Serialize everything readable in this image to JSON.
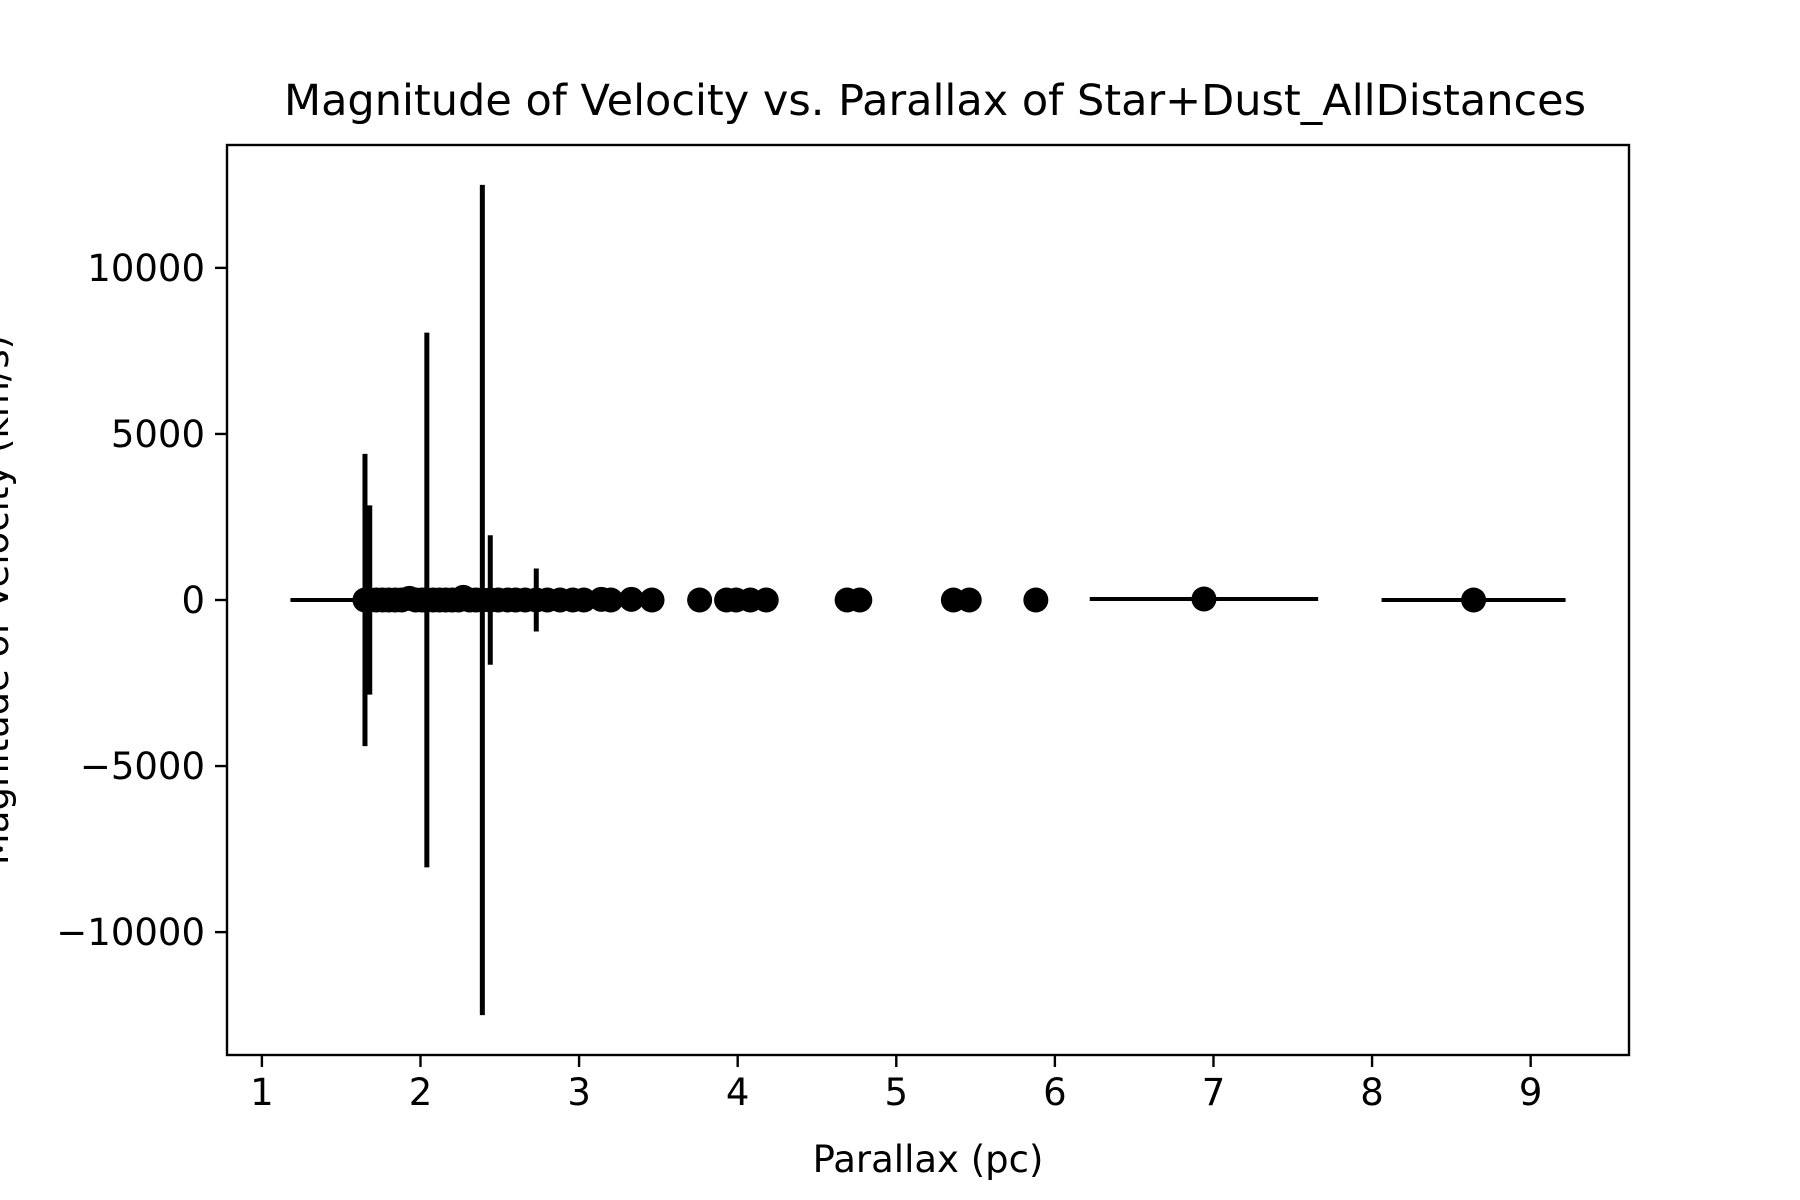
{
  "chart_data": {
    "type": "scatter",
    "title": "Magnitude of Velocity vs. Parallax of Star+Dust_AllDistances",
    "xlabel": "Parallax (pc)",
    "ylabel": "Magnitude of Velocity (km/s)",
    "xlim": [
      0.78,
      9.62
    ],
    "ylim": [
      -13700,
      13700
    ],
    "xticks": [
      1,
      2,
      3,
      4,
      5,
      6,
      7,
      8,
      9
    ],
    "xtick_labels": [
      "1",
      "2",
      "3",
      "4",
      "5",
      "6",
      "7",
      "8",
      "9"
    ],
    "yticks": [
      10000,
      5000,
      0,
      -5000,
      -10000
    ],
    "ytick_labels": [
      "10000",
      "5000",
      "0",
      "−5000",
      "−10000"
    ],
    "grid": false,
    "legend": "none",
    "color": "#000000",
    "points": [
      {
        "x": 1.65,
        "y": 0,
        "yerr": 4400,
        "xerr": 0.47
      },
      {
        "x": 1.68,
        "y": 0,
        "yerr": 2850
      },
      {
        "x": 1.72,
        "y": 0
      },
      {
        "x": 1.76,
        "y": 0
      },
      {
        "x": 1.8,
        "y": 0
      },
      {
        "x": 1.84,
        "y": 0
      },
      {
        "x": 1.88,
        "y": 0
      },
      {
        "x": 1.93,
        "y": 50
      },
      {
        "x": 1.97,
        "y": 0
      },
      {
        "x": 2.01,
        "y": 0
      },
      {
        "x": 2.04,
        "y": 0,
        "yerr": 8050
      },
      {
        "x": 2.08,
        "y": 0
      },
      {
        "x": 2.12,
        "y": 0
      },
      {
        "x": 2.16,
        "y": 0
      },
      {
        "x": 2.2,
        "y": 0
      },
      {
        "x": 2.24,
        "y": 0
      },
      {
        "x": 2.27,
        "y": 80
      },
      {
        "x": 2.31,
        "y": 0
      },
      {
        "x": 2.35,
        "y": 0
      },
      {
        "x": 2.39,
        "y": 0,
        "yerr": 12500
      },
      {
        "x": 2.44,
        "y": 0,
        "yerr": 1950
      },
      {
        "x": 2.49,
        "y": 0
      },
      {
        "x": 2.55,
        "y": 0
      },
      {
        "x": 2.6,
        "y": 0
      },
      {
        "x": 2.66,
        "y": 0
      },
      {
        "x": 2.73,
        "y": 0,
        "yerr": 950
      },
      {
        "x": 2.8,
        "y": 0
      },
      {
        "x": 2.88,
        "y": 0
      },
      {
        "x": 2.96,
        "y": 0
      },
      {
        "x": 3.03,
        "y": 0
      },
      {
        "x": 3.14,
        "y": 20
      },
      {
        "x": 3.2,
        "y": 0
      },
      {
        "x": 3.33,
        "y": 20
      },
      {
        "x": 3.46,
        "y": 0
      },
      {
        "x": 3.76,
        "y": 0
      },
      {
        "x": 3.93,
        "y": 0
      },
      {
        "x": 3.99,
        "y": 0
      },
      {
        "x": 4.08,
        "y": 0
      },
      {
        "x": 4.18,
        "y": 0
      },
      {
        "x": 4.69,
        "y": 0
      },
      {
        "x": 4.77,
        "y": 0
      },
      {
        "x": 5.36,
        "y": 0
      },
      {
        "x": 5.46,
        "y": 0
      },
      {
        "x": 5.88,
        "y": 0
      },
      {
        "x": 6.94,
        "y": 30,
        "xerr": 0.72
      },
      {
        "x": 8.64,
        "y": 0,
        "xerr": 0.58
      }
    ]
  }
}
